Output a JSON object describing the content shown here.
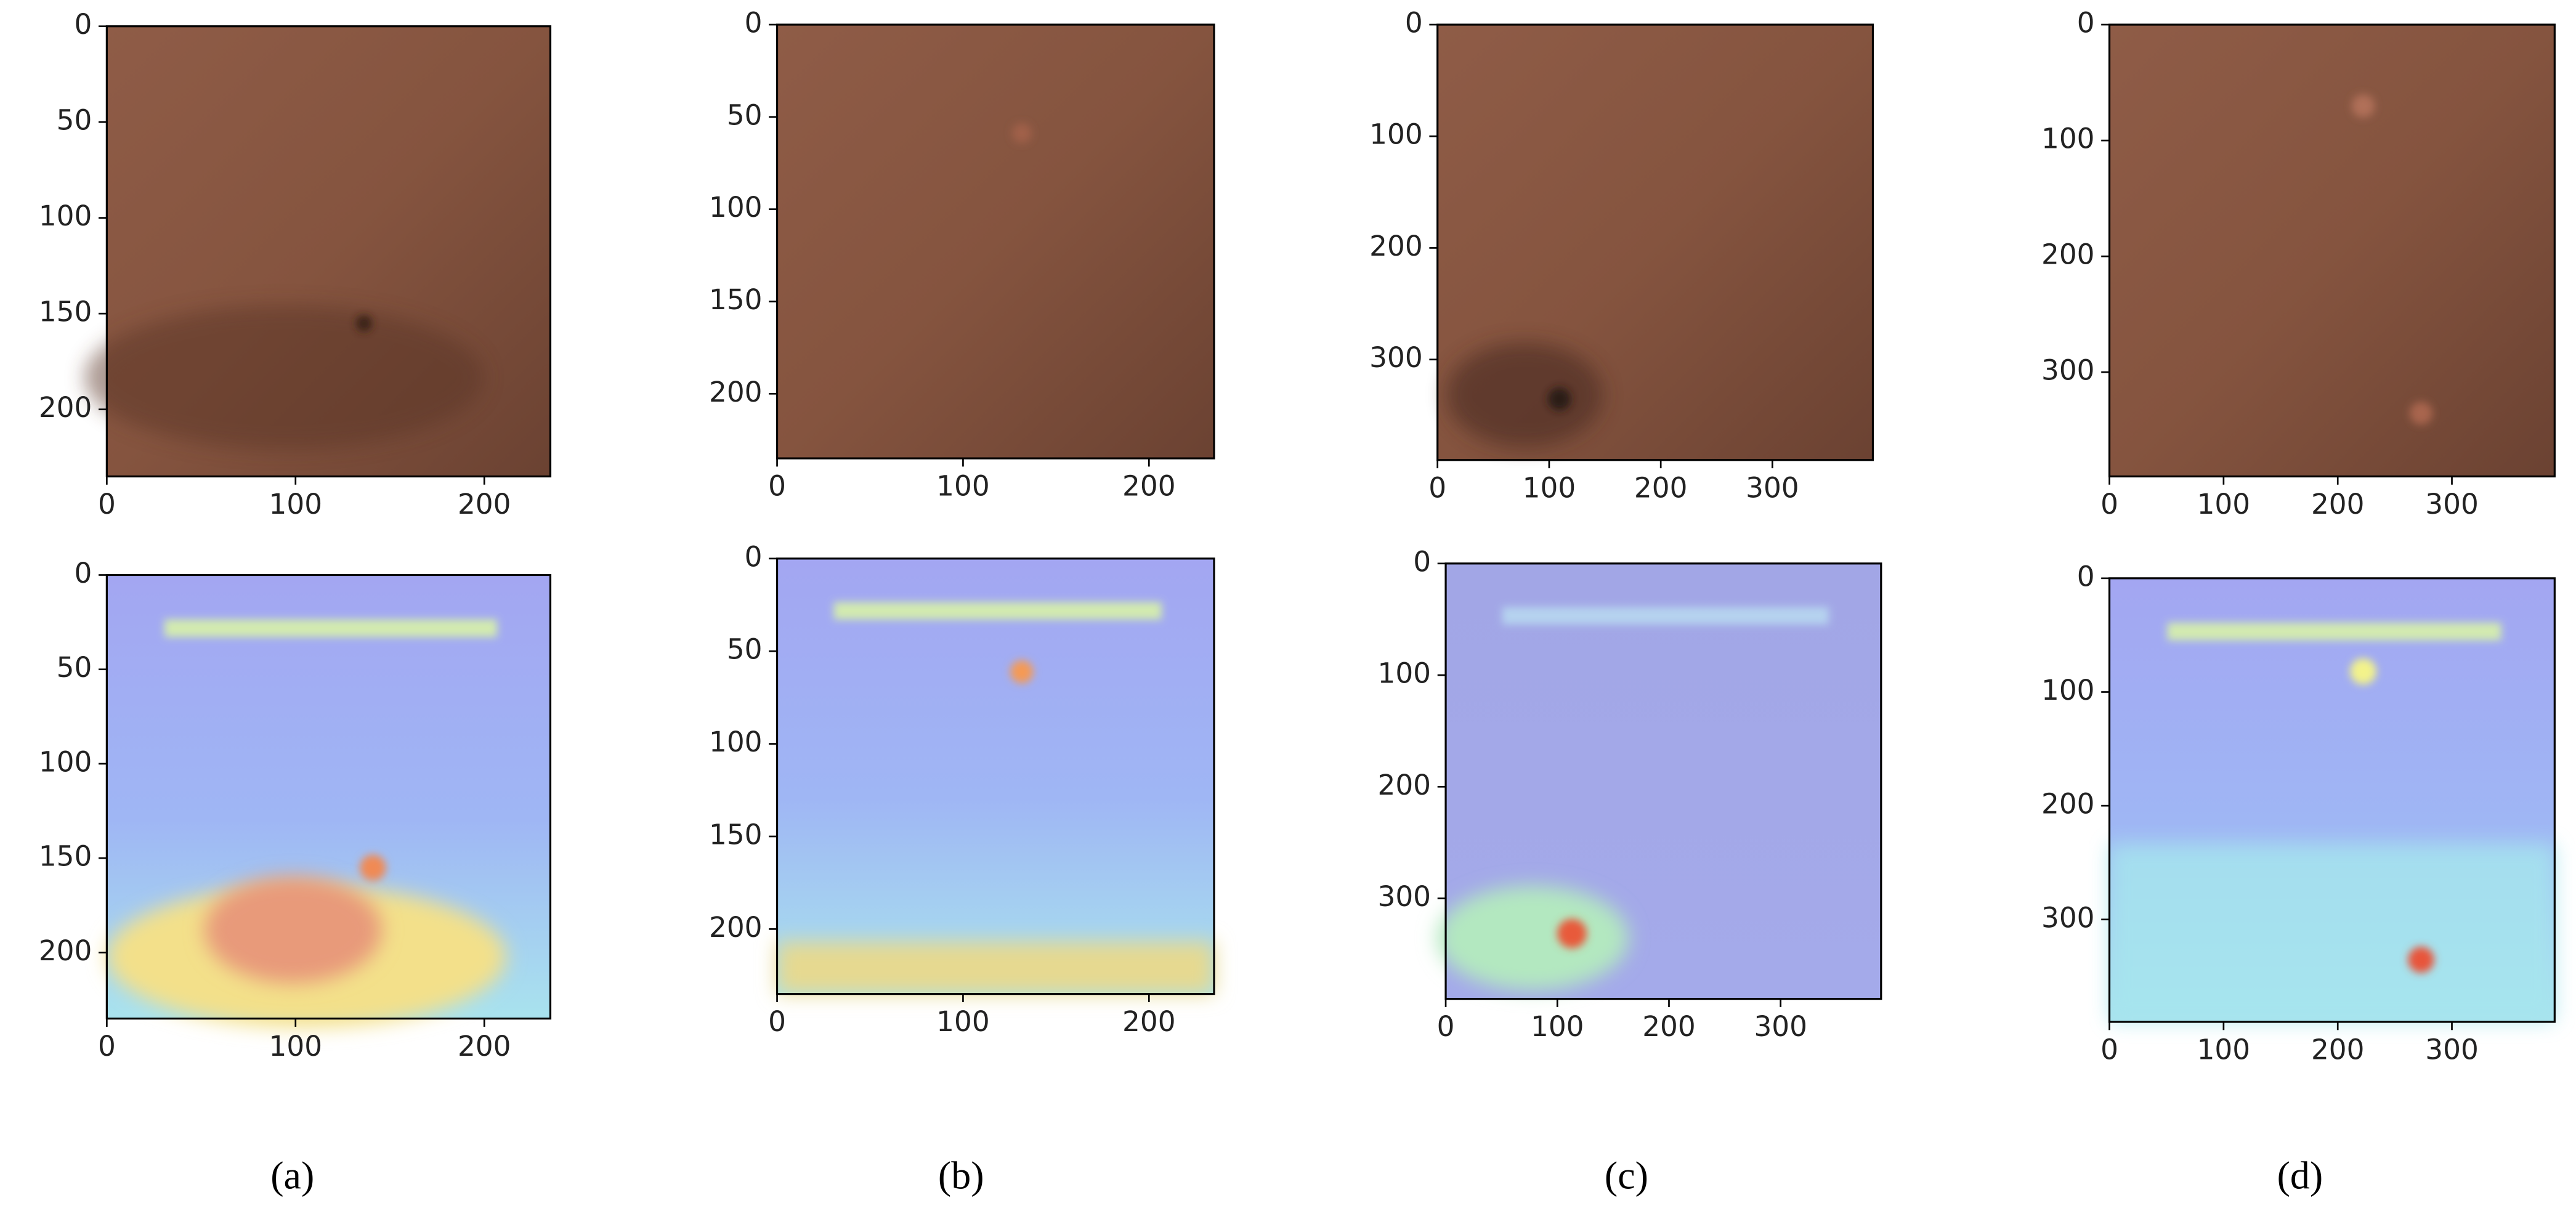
{
  "chart_data": [
    {
      "type": "image",
      "xlim": [
        0,
        235
      ],
      "ylim": [
        0,
        235
      ],
      "xticks": [
        0,
        100,
        200
      ],
      "yticks": [
        0,
        50,
        100,
        150,
        200
      ],
      "y_inverted": true
    },
    {
      "type": "image",
      "xlim": [
        0,
        235
      ],
      "ylim": [
        0,
        235
      ],
      "xticks": [
        0,
        100,
        200
      ],
      "yticks": [
        0,
        50,
        100,
        150,
        200
      ],
      "y_inverted": true
    },
    {
      "type": "image",
      "xlim": [
        0,
        390
      ],
      "ylim": [
        0,
        390
      ],
      "xticks": [
        0,
        100,
        200,
        300
      ],
      "yticks": [
        0,
        100,
        200,
        300
      ],
      "y_inverted": true
    },
    {
      "type": "image",
      "xlim": [
        0,
        390
      ],
      "ylim": [
        0,
        390
      ],
      "xticks": [
        0,
        100,
        200,
        300
      ],
      "yticks": [
        0,
        100,
        200,
        300
      ],
      "y_inverted": true
    },
    {
      "type": "image",
      "xlim": [
        0,
        235
      ],
      "ylim": [
        0,
        235
      ],
      "xticks": [
        0,
        100,
        200
      ],
      "yticks": [
        0,
        50,
        100,
        150,
        200
      ],
      "y_inverted": true
    },
    {
      "type": "image",
      "xlim": [
        0,
        235
      ],
      "ylim": [
        0,
        235
      ],
      "xticks": [
        0,
        100,
        200
      ],
      "yticks": [
        0,
        50,
        100,
        150,
        200
      ],
      "y_inverted": true
    },
    {
      "type": "image",
      "xlim": [
        0,
        390
      ],
      "ylim": [
        0,
        390
      ],
      "xticks": [
        0,
        100,
        200,
        300
      ],
      "yticks": [
        0,
        100,
        200,
        300
      ],
      "y_inverted": true
    },
    {
      "type": "image",
      "xlim": [
        0,
        390
      ],
      "ylim": [
        0,
        390
      ],
      "xticks": [
        0,
        100,
        200,
        300
      ],
      "yticks": [
        0,
        100,
        200,
        300
      ],
      "y_inverted": true
    }
  ],
  "captions": [
    "(a)",
    "(b)",
    "(c)",
    "(d)"
  ]
}
